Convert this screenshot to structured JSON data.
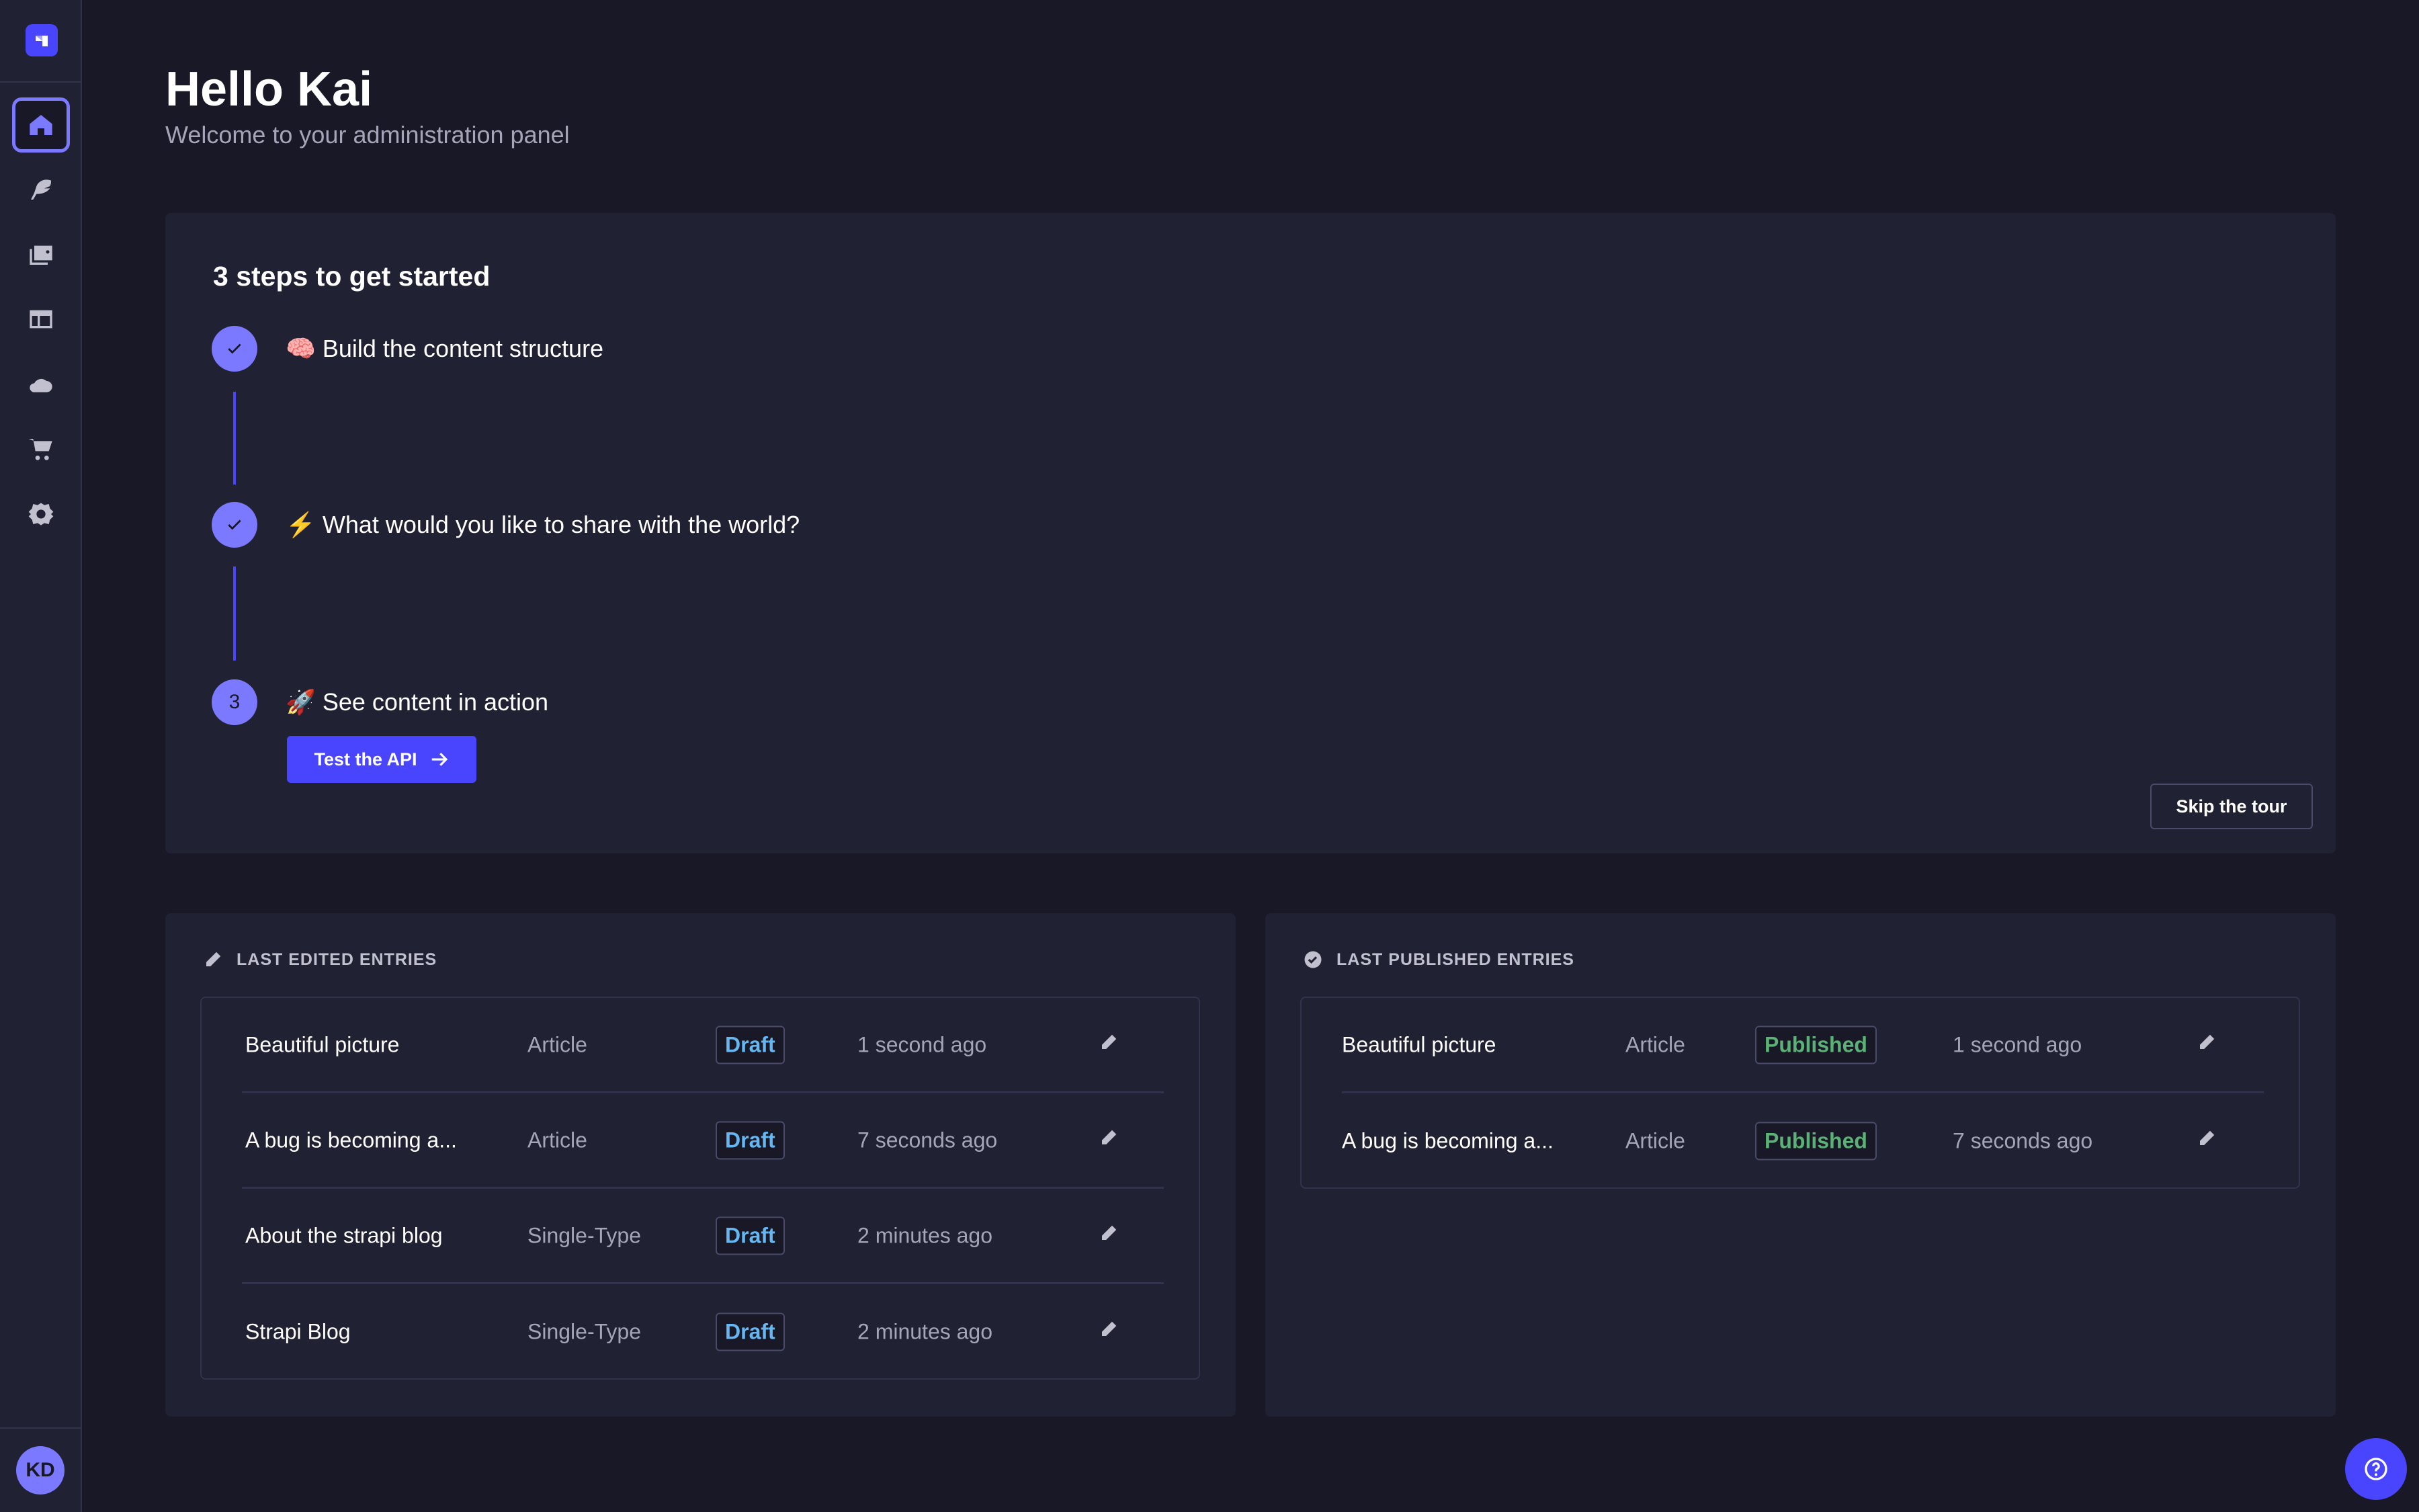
{
  "colors": {
    "accent": "#4945ff",
    "accent_light": "#7b79ff",
    "background": "#181826",
    "surface": "#212134",
    "draft": "#66b7f1",
    "published": "#5cb176"
  },
  "sidebar": {
    "logo": "strapi-logo",
    "items": [
      {
        "icon": "home-icon",
        "active": true
      },
      {
        "icon": "feather-icon"
      },
      {
        "icon": "media-library-icon"
      },
      {
        "icon": "layout-icon"
      },
      {
        "icon": "cloud-icon"
      },
      {
        "icon": "cart-icon"
      },
      {
        "icon": "gear-icon"
      }
    ],
    "avatar": "KD"
  },
  "header": {
    "title": "Hello Kai",
    "subtitle": "Welcome to your administration panel"
  },
  "onboarding": {
    "title": "3 steps to get started",
    "steps": [
      {
        "emoji": "🧠",
        "label": "Build the content structure",
        "done": true
      },
      {
        "emoji": "⚡",
        "label": "What would you like to share with the world?",
        "done": true
      },
      {
        "emoji": "🚀",
        "label": "See content in action",
        "number": "3",
        "done": false
      }
    ],
    "cta": "Test the API",
    "skip": "Skip the tour"
  },
  "last_edited": {
    "title": "LAST EDITED ENTRIES",
    "rows": [
      {
        "name": "Beautiful picture",
        "type": "Article",
        "status": "Draft",
        "time": "1 second ago"
      },
      {
        "name": "A bug is becoming a...",
        "type": "Article",
        "status": "Draft",
        "time": "7 seconds ago"
      },
      {
        "name": "About the strapi blog",
        "type": "Single-Type",
        "status": "Draft",
        "time": "2 minutes ago"
      },
      {
        "name": "Strapi Blog",
        "type": "Single-Type",
        "status": "Draft",
        "time": "2 minutes ago"
      }
    ]
  },
  "last_published": {
    "title": "LAST PUBLISHED ENTRIES",
    "rows": [
      {
        "name": "Beautiful picture",
        "type": "Article",
        "status": "Published",
        "time": "1 second ago"
      },
      {
        "name": "A bug is becoming a...",
        "type": "Article",
        "status": "Published",
        "time": "7 seconds ago"
      }
    ]
  },
  "help": {
    "icon": "question-icon"
  }
}
